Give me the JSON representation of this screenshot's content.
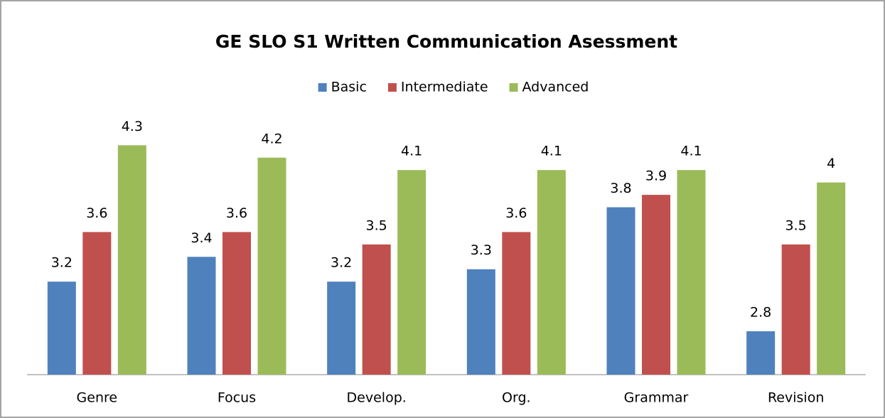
{
  "chart_data": {
    "type": "bar",
    "title": "GE SLO S1 Written Communication Asessment",
    "categories": [
      "Genre",
      "Focus",
      "Develop.",
      "Org.",
      "Grammar",
      "Revision"
    ],
    "series": [
      {
        "name": "Basic",
        "color": "#4f81bd",
        "values": [
          3.2,
          3.4,
          3.2,
          3.3,
          3.8,
          2.8
        ]
      },
      {
        "name": "Intermediate",
        "color": "#c0504d",
        "values": [
          3.6,
          3.6,
          3.5,
          3.6,
          3.9,
          3.5
        ]
      },
      {
        "name": "Advanced",
        "color": "#9bbb59",
        "values": [
          4.3,
          4.2,
          4.1,
          4.1,
          4.1,
          4.0
        ]
      }
    ],
    "ylim": [
      2.45,
      4.6
    ],
    "legend": "top"
  }
}
